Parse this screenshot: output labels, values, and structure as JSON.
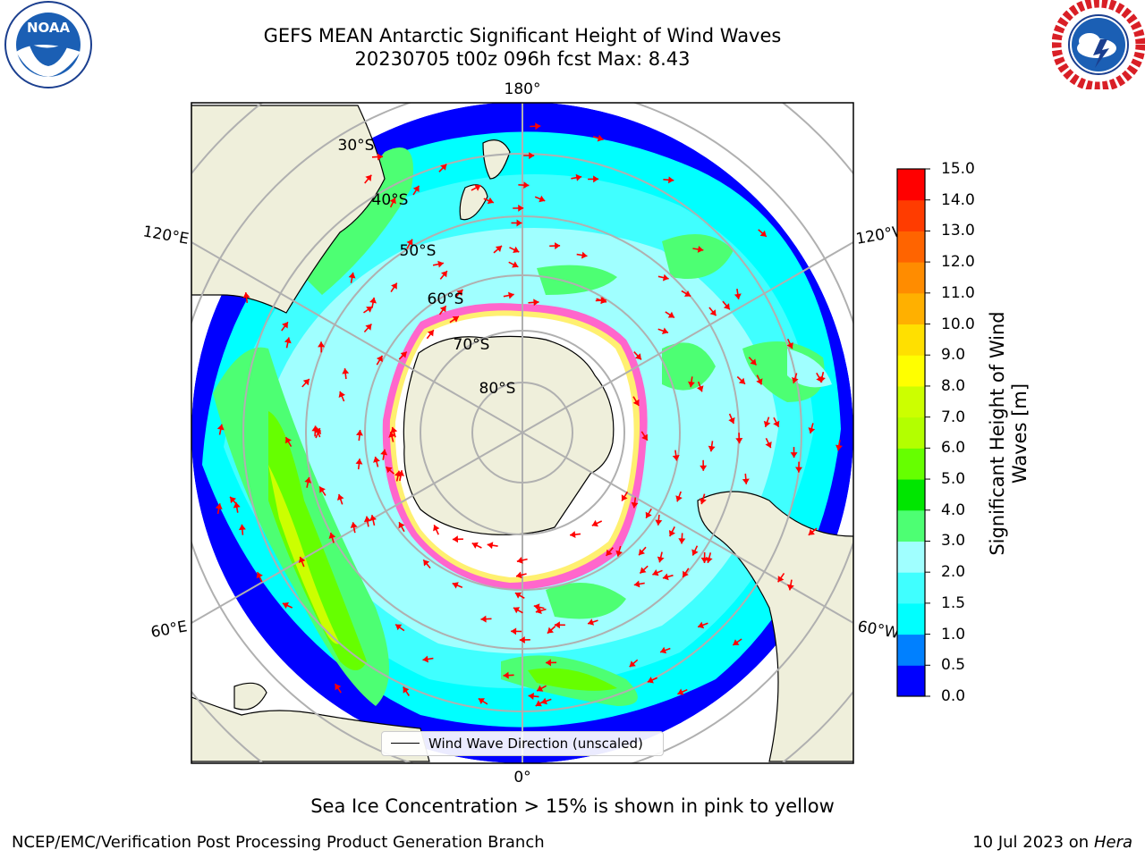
{
  "header": {
    "title_line1": "GEFS MEAN Antarctic Significant Height of Wind Waves",
    "title_line2": "20230705 t00z 096h fcst   Max: 8.43"
  },
  "logos": {
    "left": {
      "text": "NOAA",
      "ring_text": "NATIONAL OCEANIC AND ATMOSPHERIC ADMINISTRATION · U.S. DEPARTMENT OF COMMERCE"
    },
    "right": {
      "ring_text": "NATIONAL WEATHER SERVICE"
    }
  },
  "map": {
    "lon_labels": {
      "top": "180°",
      "bottom": "0°",
      "upper_left": "120°E",
      "upper_right": "120°W",
      "lower_left": "60°E",
      "lower_right": "60°W"
    },
    "lat_labels": [
      "30°S",
      "40°S",
      "50°S",
      "60°S",
      "70°S",
      "80°S"
    ],
    "legend_label": "Wind Wave Direction (unscaled)",
    "arrow_color": "#ff0000",
    "land_color": "#efefdb"
  },
  "colorbar": {
    "title_line1": "Significant Height of Wind",
    "title_line2": "Waves [m]",
    "ticks": [
      "15.0",
      "14.0",
      "13.0",
      "12.0",
      "11.0",
      "10.0",
      "9.0",
      "8.0",
      "7.0",
      "6.0",
      "5.0",
      "4.0",
      "3.0",
      "2.0",
      "1.5",
      "1.0",
      "0.5",
      "0.0"
    ],
    "colors": [
      "#0000ff",
      "#0080ff",
      "#00ffff",
      "#40ffff",
      "#a0ffff",
      "#4dff73",
      "#00e600",
      "#66ff00",
      "#b3ff00",
      "#ccff00",
      "#ffff00",
      "#ffe000",
      "#ffb000",
      "#ff8c00",
      "#ff6400",
      "#ff3c00",
      "#ff0000"
    ]
  },
  "subtitle": "Sea Ice Concentration > 15% is shown in pink to yellow",
  "footer": {
    "left": "NCEP/EMC/Verification Post Processing Product Generation Branch",
    "right_prefix": "10 Jul 2023 on",
    "right_italic": "Hera"
  }
}
